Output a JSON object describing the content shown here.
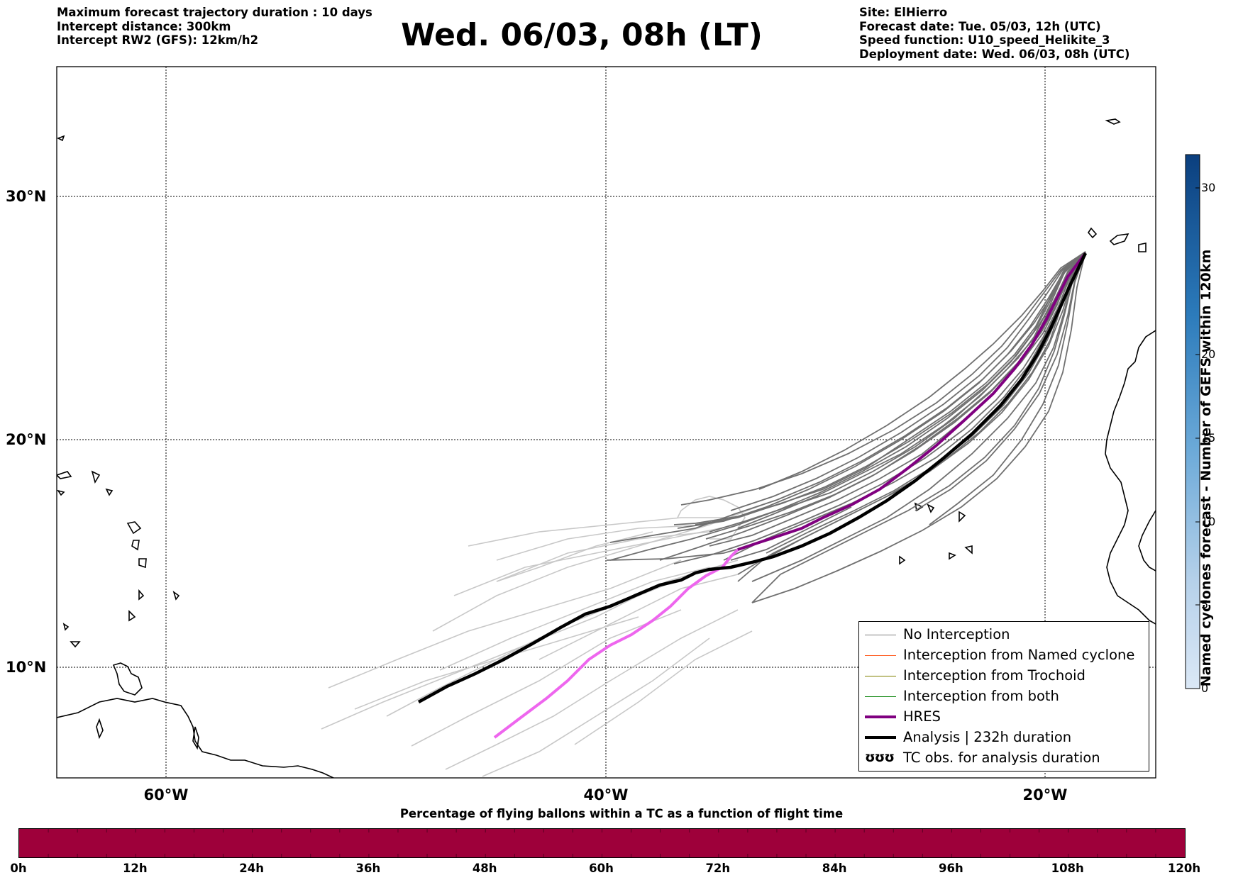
{
  "header_left": {
    "line1": "Maximum forecast trajectory duration : 10 days",
    "line2": "Intercept distance: 300km",
    "line3": "Intercept RW2 (GFS):  12km/h2"
  },
  "title": "Wed. 06/03, 08h (LT)",
  "header_right": {
    "site": "Site: ElHierro",
    "forecast_date": "Forecast date: Tue. 05/03, 12h (UTC)",
    "speed_function": "Speed function: U10_speed_Helikite_3",
    "deployment_date": "Deployment date: Wed. 06/03, 08h (UTC)"
  },
  "map": {
    "lat_labels": [
      "30°N",
      "20°N",
      "10°N"
    ],
    "lon_labels": [
      "60°W",
      "40°W",
      "20°W"
    ],
    "extent": {
      "lon_min": -65,
      "lon_max": -15,
      "lat_min": 4.6,
      "lat_max": 34
    }
  },
  "legend": {
    "items": [
      {
        "label": "No Interception",
        "color": "#808080"
      },
      {
        "label": "Interception from Named cyclone",
        "color": "#ff5a1e"
      },
      {
        "label": "Interception from Trochoid",
        "color": "#808000"
      },
      {
        "label": "Interception from both",
        "color": "#008000"
      },
      {
        "label": "HRES",
        "color": "#800080"
      },
      {
        "label": "Analysis | 232h duration",
        "color": "#000000"
      },
      {
        "label": "TC obs. for analysis duration",
        "icon": "cyclone-symbols-icon"
      }
    ],
    "symbol_text": "ʊʊʊ"
  },
  "colorbar": {
    "title": "Named cyclones forecast - Number of GEFS within 120km",
    "ticks": [
      "0",
      "5",
      "10",
      "15",
      "20",
      "30"
    ],
    "range": [
      0,
      32
    ]
  },
  "bottom": {
    "title": "Percentage of flying ballons within a TC as a function of flight time",
    "ticks": [
      "0h",
      "12h",
      "24h",
      "36h",
      "48h",
      "60h",
      "72h",
      "84h",
      "96h",
      "108h",
      "120h"
    ],
    "fill_color": "#9e003a"
  },
  "colors": {
    "analysis": "#000000",
    "hres": "#800080",
    "hres_extension": "#ee66ee",
    "gefs_member": "#707070",
    "gefs_extension": "#c8c8c8"
  }
}
